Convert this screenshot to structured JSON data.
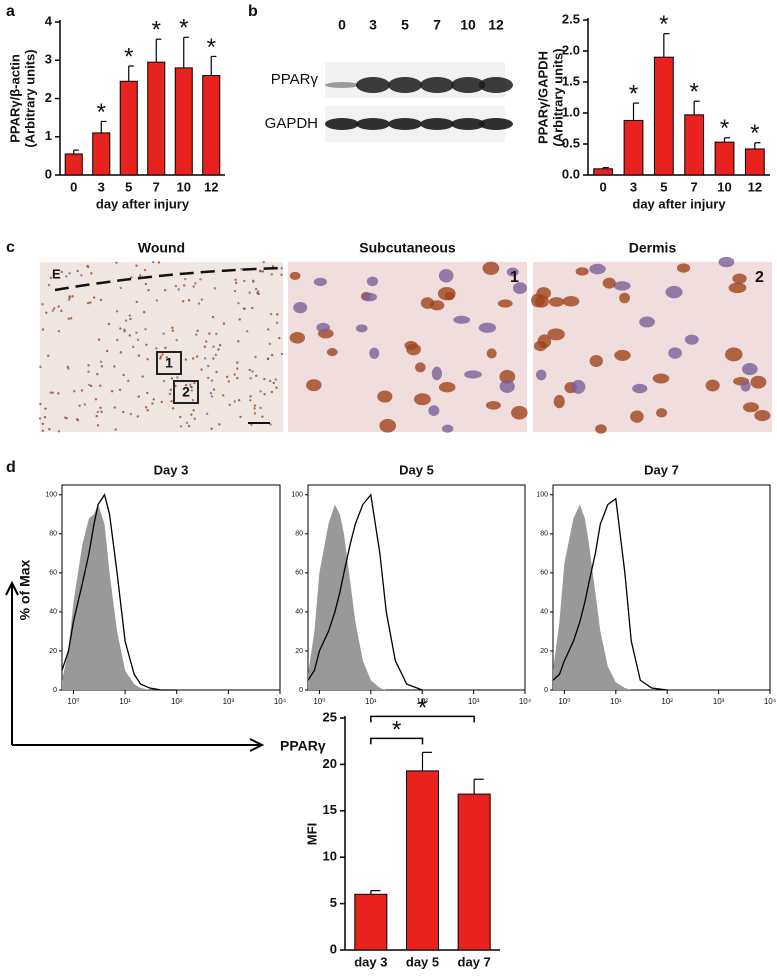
{
  "panel_labels": [
    "a",
    "b",
    "c",
    "d"
  ],
  "chart_data": [
    {
      "type": "bar",
      "categories": [
        "0",
        "3",
        "5",
        "7",
        "10",
        "12"
      ],
      "values": [
        0.55,
        1.1,
        2.45,
        2.95,
        2.8,
        2.6
      ],
      "errors": [
        0.1,
        0.3,
        0.4,
        0.6,
        0.8,
        0.5
      ],
      "value_annotations": [
        null,
        "*",
        "*",
        "*",
        "*",
        "*"
      ],
      "color": "#e8231f",
      "ylim": [
        0,
        4
      ],
      "yticks": [
        0,
        1,
        2,
        3,
        4
      ],
      "ylabel": [
        "PPARγ/β-actin",
        "(Arbitrary units)"
      ],
      "xlabel": "day after injury"
    },
    {
      "type": "bar",
      "categories": [
        "0",
        "3",
        "5",
        "7",
        "10",
        "12"
      ],
      "values": [
        0.1,
        0.88,
        1.9,
        0.97,
        0.53,
        0.42
      ],
      "errors": [
        0.02,
        0.28,
        0.38,
        0.22,
        0.07,
        0.1
      ],
      "value_annotations": [
        null,
        "*",
        "*",
        "*",
        "*",
        "*"
      ],
      "color": "#e8231f",
      "ylim": [
        0,
        2.5
      ],
      "yticks": [
        {
          "value": 0,
          "label": "0.0"
        },
        0.5,
        {
          "value": 1,
          "label": "1.0"
        },
        1.5,
        {
          "value": 2,
          "label": "2.0"
        },
        2.5
      ],
      "ylabel": [
        "PPARγ/GAPDH",
        "(Arbitrary units)"
      ],
      "xlabel": "day after injury"
    },
    {
      "type": "area",
      "title": "Day 3",
      "xscale": "log",
      "x": [
        0.6,
        0.8,
        1,
        1.5,
        2,
        2.5,
        3,
        4,
        5,
        7,
        10,
        15,
        20,
        30,
        50,
        100
      ],
      "series": [
        {
          "color": "#999999",
          "fill": true,
          "values": [
            5,
            20,
            45,
            75,
            88,
            90,
            95,
            85,
            60,
            30,
            10,
            3,
            1,
            0,
            0,
            0
          ]
        },
        {
          "color": "#000000",
          "fill": false,
          "values": [
            10,
            20,
            35,
            55,
            70,
            85,
            95,
            100,
            90,
            60,
            25,
            8,
            3,
            1,
            0,
            0
          ]
        }
      ],
      "xlim": [
        0.6,
        10000
      ],
      "xticks": [
        {
          "value": 1,
          "label": "10⁰"
        },
        {
          "value": 10,
          "label": "10¹"
        },
        {
          "value": 100,
          "label": "10²"
        },
        {
          "value": 1000,
          "label": "10³"
        },
        {
          "value": 10000,
          "label": "10⁴"
        }
      ],
      "ylim": [
        0,
        105
      ],
      "yticks": [
        0,
        20,
        40,
        60,
        80,
        100
      ]
    },
    {
      "type": "area",
      "title": "Day 5",
      "xscale": "log",
      "x": [
        0.6,
        0.8,
        1,
        1.5,
        2,
        2.5,
        3,
        4,
        5,
        7,
        10,
        15,
        20,
        30,
        50,
        100
      ],
      "series": [
        {
          "color": "#999999",
          "fill": true,
          "values": [
            8,
            30,
            60,
            85,
            95,
            90,
            80,
            55,
            35,
            15,
            5,
            1,
            0,
            0,
            0,
            0
          ]
        },
        {
          "color": "#000000",
          "fill": false,
          "values": [
            5,
            10,
            20,
            30,
            40,
            50,
            60,
            75,
            85,
            95,
            100,
            70,
            40,
            15,
            3,
            0
          ]
        }
      ],
      "xlim": [
        0.6,
        10000
      ],
      "xticks": [
        {
          "value": 1,
          "label": "10⁰"
        },
        {
          "value": 10,
          "label": "10¹"
        },
        {
          "value": 100,
          "label": "10²"
        },
        {
          "value": 1000,
          "label": "10³"
        },
        {
          "value": 10000,
          "label": "10⁴"
        }
      ],
      "ylim": [
        0,
        105
      ],
      "yticks": [
        0,
        20,
        40,
        60,
        80,
        100
      ]
    },
    {
      "type": "area",
      "title": "Day 7",
      "xscale": "log",
      "x": [
        0.6,
        0.8,
        1,
        1.5,
        2,
        2.5,
        3,
        4,
        5,
        7,
        10,
        15,
        20,
        30,
        50,
        100
      ],
      "series": [
        {
          "color": "#999999",
          "fill": true,
          "values": [
            10,
            35,
            65,
            88,
            95,
            88,
            75,
            50,
            30,
            12,
            4,
            1,
            0,
            0,
            0,
            0
          ]
        },
        {
          "color": "#000000",
          "fill": false,
          "values": [
            5,
            8,
            15,
            25,
            35,
            45,
            55,
            70,
            85,
            95,
            98,
            60,
            25,
            5,
            1,
            0
          ]
        }
      ],
      "xlim": [
        0.6,
        10000
      ],
      "xticks": [
        {
          "value": 1,
          "label": "10⁰"
        },
        {
          "value": 10,
          "label": "10¹"
        },
        {
          "value": 100,
          "label": "10²"
        },
        {
          "value": 1000,
          "label": "10³"
        },
        {
          "value": 10000,
          "label": "10⁴"
        }
      ],
      "ylim": [
        0,
        105
      ],
      "yticks": [
        0,
        20,
        40,
        60,
        80,
        100
      ]
    },
    {
      "type": "bar",
      "categories": [
        "day 3",
        "day 5",
        "day 7"
      ],
      "values": [
        6,
        19.3,
        16.8
      ],
      "errors": [
        0.4,
        2,
        1.6
      ],
      "color": "#e8231f",
      "ylim": [
        0,
        25
      ],
      "yticks": [
        0,
        5,
        10,
        15,
        20,
        25
      ],
      "ylabel": [
        "MFI"
      ],
      "annotations": [
        {
          "text": "*",
          "from": "day 3",
          "to": "day 5"
        },
        {
          "text": "*",
          "from": "day 3",
          "to": "day 7"
        }
      ]
    }
  ],
  "blot": {
    "lanes": [
      "0",
      "3",
      "5",
      "7",
      "10",
      "12"
    ],
    "rows": [
      "PPARγ",
      "GAPDH"
    ]
  },
  "histology": {
    "titles": [
      "Wound",
      "Subcutaneous",
      "Dermis"
    ],
    "wound_labels": [
      "E",
      "1",
      "2"
    ],
    "corner_labels": [
      "1",
      "2"
    ]
  },
  "flow": {
    "ylabel": "% of Max",
    "xlabel": "PPARγ"
  }
}
